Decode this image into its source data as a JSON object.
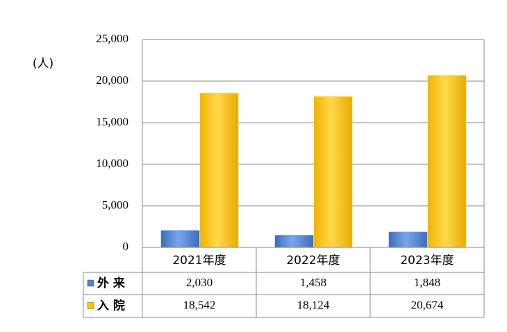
{
  "chart_data": {
    "type": "bar",
    "y_label": "(人)",
    "categories": [
      "2021年度",
      "2022年度",
      "2023年度"
    ],
    "series": [
      {
        "name": "外 来",
        "color": "#4f81d0",
        "values": [
          2030,
          1458,
          1848
        ],
        "value_labels": [
          "2,030",
          "1,458",
          "1,848"
        ]
      },
      {
        "name": "入 院",
        "color": "#ffc800",
        "values": [
          18542,
          18124,
          20674
        ],
        "value_labels": [
          "18,542",
          "18,124",
          "20,674"
        ]
      }
    ],
    "ylim": [
      0,
      25000
    ],
    "yticks": [
      0,
      {
        "value": 5000,
        "label": "5,000"
      },
      {
        "value": 10000,
        "label": "10,000"
      },
      {
        "value": 15000,
        "label": "15,000"
      },
      {
        "value": 20000,
        "label": "20,000"
      },
      {
        "value": 25000,
        "label": "25,000"
      }
    ],
    "grid": true
  }
}
